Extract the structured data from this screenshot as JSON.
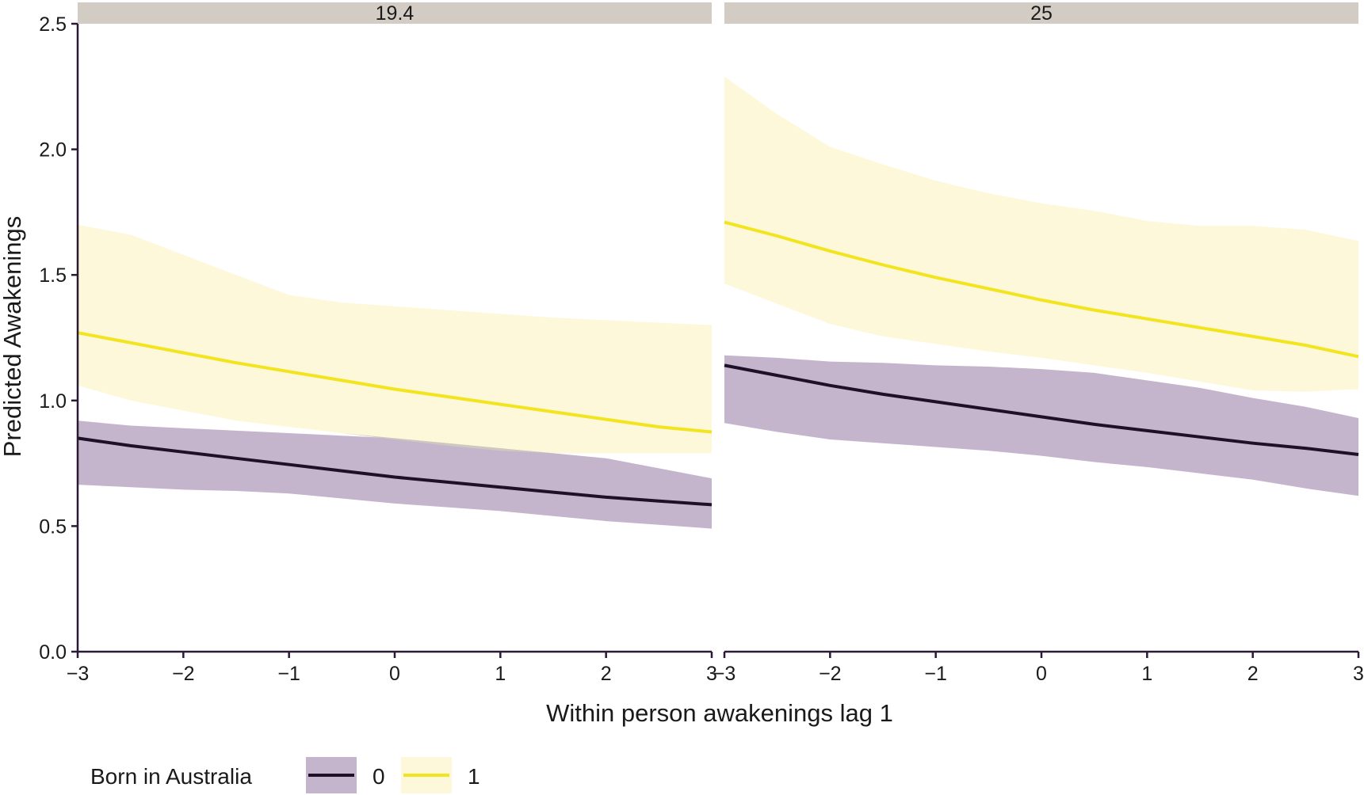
{
  "chart_data": {
    "type": "line",
    "xlabel": "Within person awakenings lag 1",
    "ylabel": "Predicted Awakenings",
    "xlim": [
      -3,
      3
    ],
    "ylim": [
      0,
      2.5
    ],
    "x_ticks": [
      -3,
      -2,
      -1,
      0,
      1,
      2,
      3
    ],
    "x_tick_labels": [
      "−3",
      "−2",
      "−1",
      "0",
      "1",
      "2",
      "3"
    ],
    "y_ticks": [
      0,
      0.5,
      1,
      1.5,
      2,
      2.5
    ],
    "y_tick_labels": [
      "0.0",
      "0.5",
      "1.0",
      "1.5",
      "2.0",
      "2.5"
    ],
    "grid": false,
    "legend": {
      "title": "Born in Australia",
      "placement": "bottom-left",
      "entries": [
        {
          "label": "0",
          "line_color": "#1e1028",
          "fill_color": "#c4b5cd"
        },
        {
          "label": "1",
          "line_color": "#f2e41e",
          "fill_color": "#fdf8d9"
        }
      ]
    },
    "colors": {
      "overlap": "#cec8c0",
      "strip": "#d2ccc4",
      "axis": "#2a1a33"
    },
    "x": [
      -3,
      -2.5,
      -2,
      -1.5,
      -1,
      -0.5,
      0,
      0.5,
      1,
      1.5,
      2,
      2.5,
      3
    ],
    "panels": [
      {
        "strip": "19.4",
        "series": [
          {
            "name": "0",
            "fit": [
              0.85,
              0.82,
              0.795,
              0.77,
              0.745,
              0.72,
              0.695,
              0.675,
              0.655,
              0.635,
              0.615,
              0.6,
              0.585
            ],
            "lower": [
              0.665,
              0.655,
              0.645,
              0.64,
              0.63,
              0.61,
              0.59,
              0.575,
              0.56,
              0.54,
              0.52,
              0.505,
              0.49
            ],
            "upper": [
              0.92,
              0.9,
              0.89,
              0.88,
              0.87,
              0.86,
              0.85,
              0.83,
              0.81,
              0.79,
              0.77,
              0.73,
              0.69
            ]
          },
          {
            "name": "1",
            "fit": [
              1.27,
              1.23,
              1.19,
              1.15,
              1.115,
              1.08,
              1.045,
              1.015,
              0.985,
              0.955,
              0.925,
              0.895,
              0.875
            ],
            "lower": [
              1.06,
              1.0,
              0.96,
              0.92,
              0.895,
              0.87,
              0.845,
              0.82,
              0.8,
              0.79,
              0.79,
              0.79,
              0.79
            ],
            "upper": [
              1.7,
              1.66,
              1.58,
              1.5,
              1.42,
              1.39,
              1.375,
              1.36,
              1.345,
              1.33,
              1.32,
              1.31,
              1.3
            ]
          }
        ]
      },
      {
        "strip": "25",
        "series": [
          {
            "name": "0",
            "fit": [
              1.14,
              1.1,
              1.06,
              1.025,
              0.995,
              0.965,
              0.935,
              0.905,
              0.88,
              0.855,
              0.83,
              0.81,
              0.785
            ],
            "lower": [
              0.91,
              0.875,
              0.845,
              0.83,
              0.815,
              0.8,
              0.78,
              0.755,
              0.735,
              0.71,
              0.685,
              0.65,
              0.62
            ],
            "upper": [
              1.18,
              1.17,
              1.155,
              1.15,
              1.14,
              1.135,
              1.125,
              1.11,
              1.08,
              1.05,
              1.01,
              0.975,
              0.93
            ]
          },
          {
            "name": "1",
            "fit": [
              1.71,
              1.655,
              1.595,
              1.54,
              1.49,
              1.445,
              1.4,
              1.36,
              1.325,
              1.29,
              1.255,
              1.22,
              1.175
            ],
            "lower": [
              1.465,
              1.385,
              1.305,
              1.255,
              1.225,
              1.195,
              1.17,
              1.14,
              1.11,
              1.075,
              1.04,
              1.035,
              1.045
            ],
            "upper": [
              2.29,
              2.14,
              2.01,
              1.94,
              1.875,
              1.825,
              1.785,
              1.755,
              1.715,
              1.695,
              1.695,
              1.68,
              1.635
            ]
          }
        ]
      }
    ]
  }
}
